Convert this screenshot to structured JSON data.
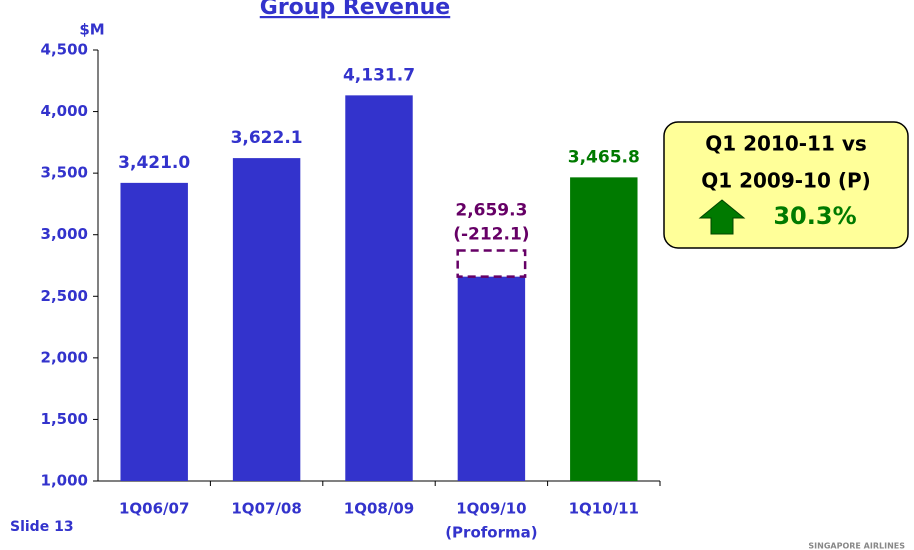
{
  "chart_data": {
    "type": "bar",
    "title": "Group Revenue",
    "y_label": "$M",
    "categories": [
      "1Q06/07",
      "1Q07/08",
      "1Q08/09",
      "1Q09/10",
      "1Q10/11"
    ],
    "category_sublabels": [
      null,
      null,
      null,
      "(Proforma)",
      null
    ],
    "values": [
      3421.0,
      3622.1,
      4131.7,
      2659.3,
      3465.8
    ],
    "value_labels": [
      "3,421.0",
      "3,622.1",
      "4,131.7",
      "2,659.3",
      "3,465.8"
    ],
    "colors": [
      "#3333cc",
      "#3333cc",
      "#3333cc",
      "#3333cc",
      "#007a00"
    ],
    "label_colors": [
      "#3333cc",
      "#3333cc",
      "#3333cc",
      "#660066",
      "#007a00"
    ],
    "adjustment": {
      "index": 3,
      "value": 212.1,
      "label": "(-212.1)",
      "color": "#660066"
    },
    "ylim": [
      1000,
      4500
    ],
    "yticks": [
      {
        "value": 1000,
        "label": "1,000"
      },
      {
        "value": 1500,
        "label": "1,500"
      },
      {
        "value": 2000,
        "label": "2,000"
      },
      {
        "value": 2500,
        "label": "2,500"
      },
      {
        "value": 3000,
        "label": "3,000"
      },
      {
        "value": 3500,
        "label": "3,500"
      },
      {
        "value": 4000,
        "label": "4,000"
      },
      {
        "value": 4500,
        "label": "4,500"
      }
    ],
    "callout": {
      "lines": [
        "Q1 2010-11 vs",
        "Q1 2009-10 (P)"
      ],
      "change": "30.3%"
    },
    "footer": "Slide 13",
    "logo": "SINGAPORE AIRLINES"
  }
}
